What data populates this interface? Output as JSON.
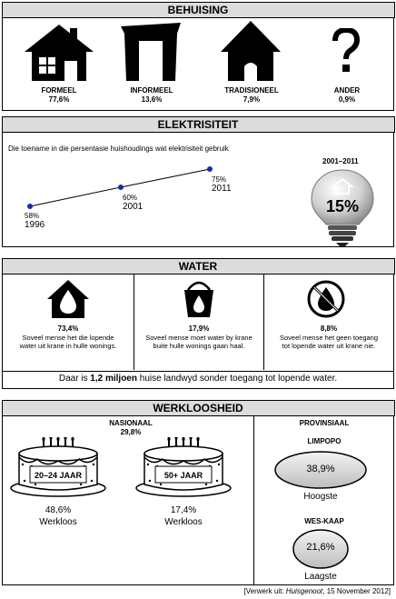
{
  "housing": {
    "title": "BEHUISING",
    "items": [
      {
        "label": "FORMEEL",
        "value": "77,6%",
        "icon": "house-icon"
      },
      {
        "label": "INFORMEEL",
        "value": "13,6%",
        "icon": "shack-icon"
      },
      {
        "label": "TRADISIONEEL",
        "value": "7,9%",
        "icon": "hut-icon"
      },
      {
        "label": "ANDER",
        "value": "0,9%",
        "icon": "question-icon"
      }
    ]
  },
  "electricity": {
    "title": "ELEKTRISITEIT",
    "subtitle": "Die toename in die persentasie huishoudings wat elektrisiteit gebruik",
    "points": [
      {
        "pct": "58%",
        "year": "1996"
      },
      {
        "pct": "60%",
        "year": "2001"
      },
      {
        "pct": "75%",
        "year": "2011"
      }
    ],
    "bulb_period": "2001–2011",
    "bulb_value": "15%",
    "icon": "lightbulb-icon"
  },
  "water": {
    "title": "WATER",
    "items": [
      {
        "pct": "73,4%",
        "text": "Soveel mense het die lopende water uit krane in hulle wonings.",
        "icon": "water-house-icon"
      },
      {
        "pct": "17,9%",
        "text": "Soveel mense moet water by krane buite hulle wonings gaan haal.",
        "icon": "water-bucket-icon"
      },
      {
        "pct": "8,8%",
        "text": "Soveel mense het geen toegang tot lopende water uit krane nie.",
        "icon": "no-water-icon"
      }
    ],
    "footer_pre": "Daar is ",
    "footer_bold": "1,2 miljoen",
    "footer_post": " huise landwyd sonder toegang tot lopende water."
  },
  "unemployment": {
    "title": "WERKLOOSHEID",
    "national_label": "NASIONAAL",
    "national_value": "29,8%",
    "cakes": [
      {
        "label": "20–24 JAAR",
        "pct": "48,6%",
        "caption": "Werkloos",
        "icon": "cake-icon"
      },
      {
        "label": "50+ JAAR",
        "pct": "17,4%",
        "caption": "Werkloos",
        "icon": "cake-icon"
      }
    ],
    "provincial_label": "PROVINSIAAL",
    "provinces": [
      {
        "name": "LIMPOPO",
        "pct": "38,9%",
        "caption": "Hoogste"
      },
      {
        "name": "WES-KAAP",
        "pct": "21,6%",
        "caption": "Laagste"
      }
    ]
  },
  "source_pre": "[Verwerk uit: ",
  "source_italic": "Huisgenoot",
  "source_post": ", 15 November 2012]"
}
